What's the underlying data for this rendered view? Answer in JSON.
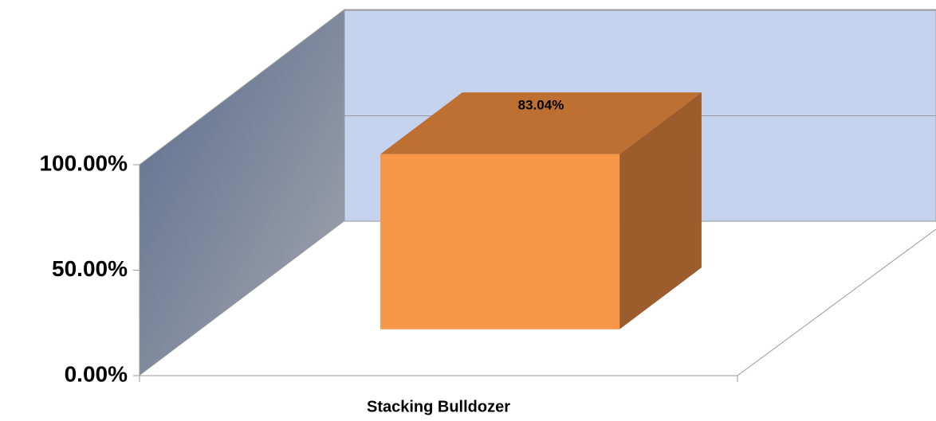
{
  "chart_data": {
    "type": "bar",
    "categories": [
      "Stacking Bulldozer"
    ],
    "values": [
      83.04
    ],
    "value_labels": [
      "83.04%"
    ],
    "color": "#f79646",
    "ylim": [
      0,
      100
    ],
    "yticks": [
      {
        "value": 0,
        "label": "0.00%"
      },
      {
        "value": 50,
        "label": "50.00%"
      },
      {
        "value": 100,
        "label": "100.00%"
      }
    ],
    "grid": true
  }
}
